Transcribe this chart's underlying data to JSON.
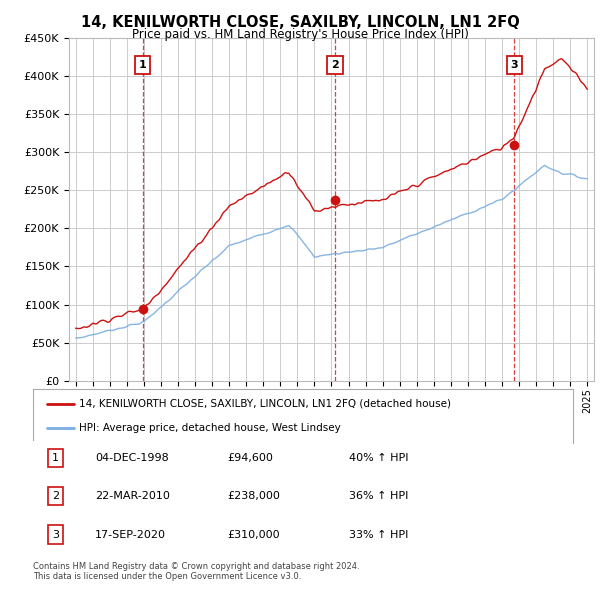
{
  "title": "14, KENILWORTH CLOSE, SAXILBY, LINCOLN, LN1 2FQ",
  "subtitle": "Price paid vs. HM Land Registry's House Price Index (HPI)",
  "ylim": [
    0,
    450000
  ],
  "yticks": [
    0,
    50000,
    100000,
    150000,
    200000,
    250000,
    300000,
    350000,
    400000,
    450000
  ],
  "ytick_labels": [
    "£0",
    "£50K",
    "£100K",
    "£150K",
    "£200K",
    "£250K",
    "£300K",
    "£350K",
    "£400K",
    "£450K"
  ],
  "hpi_color": "#7aade0",
  "price_color": "#cc1111",
  "sale_dot_color": "#cc1111",
  "vline_color": "#cc1111",
  "grid_color": "#cccccc",
  "bg_color": "#ffffff",
  "legend_label_price": "14, KENILWORTH CLOSE, SAXILBY, LINCOLN, LN1 2FQ (detached house)",
  "legend_label_hpi": "HPI: Average price, detached house, West Lindsey",
  "sales": [
    {
      "num": 1,
      "date_num": 1998.92,
      "price": 94600,
      "label": "1"
    },
    {
      "num": 2,
      "date_num": 2010.22,
      "price": 238000,
      "label": "2"
    },
    {
      "num": 3,
      "date_num": 2020.72,
      "price": 310000,
      "label": "3"
    }
  ],
  "sale_table": [
    {
      "num": "1",
      "date": "04-DEC-1998",
      "price": "£94,600",
      "change": "40% ↑ HPI"
    },
    {
      "num": "2",
      "date": "22-MAR-2010",
      "price": "£238,000",
      "change": "36% ↑ HPI"
    },
    {
      "num": "3",
      "date": "17-SEP-2020",
      "price": "£310,000",
      "change": "33% ↑ HPI"
    }
  ],
  "footer": "Contains HM Land Registry data © Crown copyright and database right 2024.\nThis data is licensed under the Open Government Licence v3.0.",
  "xlim_start": 1994.6,
  "xlim_end": 2025.4
}
